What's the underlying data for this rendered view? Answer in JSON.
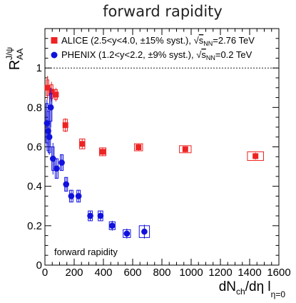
{
  "chart_data": {
    "type": "scatter",
    "title": "forward rapidity",
    "xlabel": {
      "main": "dN",
      "sub1": "ch",
      "mid": "/dη l",
      "sub2": "η=0"
    },
    "ylabel": {
      "main": "R",
      "sub": "AA",
      "sup": "J/ψ"
    },
    "xlim": [
      0,
      1600
    ],
    "ylim": [
      0,
      1.2
    ],
    "x_ticks": [
      "0",
      "200",
      "400",
      "600",
      "800",
      "1000",
      "1200",
      "1400",
      "1600"
    ],
    "y_ticks": [
      "0",
      "0.2",
      "0.4",
      "0.6",
      "0.8",
      "1"
    ],
    "reference_line": 1,
    "annotation": "forward rapidity",
    "colors": {
      "alice": "#ee2222",
      "phenix": "#1111dd"
    },
    "series": [
      {
        "name": "ALICE",
        "legend": {
          "prefix": "ALICE (2.5<y<4.0, ±15% syst.), ",
          "sqrt": "s",
          "sub": "NN",
          "suffix": "=2.76 TeV"
        },
        "marker": "square",
        "points": [
          {
            "x": 18,
            "y": 0.9,
            "err": 0.06,
            "sx": 8,
            "sy": 0.04
          },
          {
            "x": 45,
            "y": 0.88,
            "err": 0.05,
            "sx": 10,
            "sy": 0.035
          },
          {
            "x": 75,
            "y": 0.865,
            "err": 0.035,
            "sx": 10,
            "sy": 0.025
          },
          {
            "x": 140,
            "y": 0.71,
            "err": 0.035,
            "sx": 14,
            "sy": 0.03
          },
          {
            "x": 255,
            "y": 0.615,
            "err": 0.025,
            "sx": 18,
            "sy": 0.025
          },
          {
            "x": 395,
            "y": 0.575,
            "err": 0.02,
            "sx": 22,
            "sy": 0.02
          },
          {
            "x": 640,
            "y": 0.598,
            "err": 0.017,
            "sx": 28,
            "sy": 0.018
          },
          {
            "x": 960,
            "y": 0.588,
            "err": 0.015,
            "sx": 40,
            "sy": 0.018
          },
          {
            "x": 1440,
            "y": 0.553,
            "err": 0.018,
            "sx": 55,
            "sy": 0.022
          }
        ]
      },
      {
        "name": "PHENIX",
        "legend": {
          "prefix": "PHENIX (1.2<y<2.2, ±9% syst.), ",
          "sqrt": "s",
          "sub": "NN",
          "suffix": "=0.2 TeV"
        },
        "marker": "circle",
        "points": [
          {
            "x": 14,
            "y": 0.72,
            "err": 0.12,
            "sx": 8,
            "sy": 0.1
          },
          {
            "x": 22,
            "y": 0.68,
            "err": 0.1,
            "sx": 8,
            "sy": 0.1
          },
          {
            "x": 30,
            "y": 0.65,
            "err": 0.09,
            "sx": 8,
            "sy": 0.08
          },
          {
            "x": 40,
            "y": 0.8,
            "err": 0.1,
            "sx": 8,
            "sy": 0.07
          },
          {
            "x": 55,
            "y": 0.54,
            "err": 0.08,
            "sx": 8,
            "sy": 0.06
          },
          {
            "x": 80,
            "y": 0.49,
            "err": 0.05,
            "sx": 10,
            "sy": 0.05
          },
          {
            "x": 115,
            "y": 0.52,
            "err": 0.04,
            "sx": 10,
            "sy": 0.04
          },
          {
            "x": 145,
            "y": 0.41,
            "err": 0.035,
            "sx": 10,
            "sy": 0.035
          },
          {
            "x": 180,
            "y": 0.35,
            "err": 0.03,
            "sx": 12,
            "sy": 0.03
          },
          {
            "x": 230,
            "y": 0.35,
            "err": 0.03,
            "sx": 12,
            "sy": 0.03
          },
          {
            "x": 310,
            "y": 0.25,
            "err": 0.025,
            "sx": 14,
            "sy": 0.025
          },
          {
            "x": 380,
            "y": 0.25,
            "err": 0.025,
            "sx": 16,
            "sy": 0.025
          },
          {
            "x": 460,
            "y": 0.2,
            "err": 0.025,
            "sx": 20,
            "sy": 0.02
          },
          {
            "x": 560,
            "y": 0.16,
            "err": 0.025,
            "sx": 25,
            "sy": 0.02
          },
          {
            "x": 680,
            "y": 0.17,
            "err": 0.035,
            "sx": 35,
            "sy": 0.03
          }
        ]
      }
    ]
  }
}
